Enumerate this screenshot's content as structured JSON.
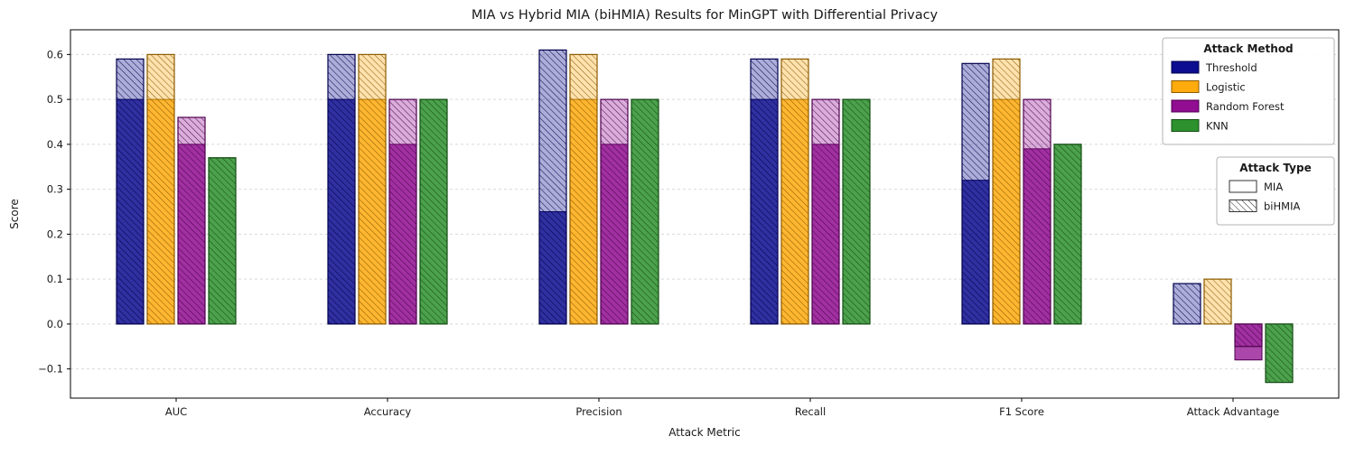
{
  "figure": {
    "background": "#ffffff"
  },
  "chart_data": {
    "type": "bar",
    "title": "MIA vs Hybrid MIA (biHMIA) Results for MinGPT with Differential Privacy",
    "xlabel": "Attack Metric",
    "ylabel": "Score",
    "categories": [
      "AUC",
      "Accuracy",
      "Precision",
      "Recall",
      "F1 Score",
      "Attack Advantage"
    ],
    "ylim": [
      -0.165,
      0.655
    ],
    "yticks": [
      -0.1,
      0.0,
      0.1,
      0.2,
      0.3,
      0.4,
      0.5,
      0.6
    ],
    "grid": "horizontal-dashed",
    "legend": {
      "method_title": "Attack Method",
      "type_title": "Attack Type",
      "type_entries": [
        "MIA",
        "biHMIA"
      ],
      "position": "upper-right-inside"
    },
    "series": [
      {
        "name": "Threshold",
        "color": "#00008b",
        "mia": [
          0.5,
          0.5,
          0.25,
          0.5,
          0.32,
          0.0
        ],
        "bihmia": [
          0.59,
          0.6,
          0.61,
          0.59,
          0.58,
          0.09
        ]
      },
      {
        "name": "Logistic",
        "color": "#ffa500",
        "mia": [
          0.5,
          0.5,
          0.5,
          0.5,
          0.5,
          0.0
        ],
        "bihmia": [
          0.6,
          0.6,
          0.6,
          0.59,
          0.59,
          0.1
        ]
      },
      {
        "name": "Random Forest",
        "color": "#8b008b",
        "mia": [
          0.4,
          0.4,
          0.4,
          0.4,
          0.39,
          -0.08
        ],
        "bihmia": [
          0.46,
          0.5,
          0.5,
          0.5,
          0.5,
          -0.05
        ]
      },
      {
        "name": "KNN",
        "color": "#228b22",
        "mia": [
          0.37,
          0.5,
          0.5,
          0.5,
          0.4,
          -0.13
        ],
        "bihmia": [
          0.37,
          0.5,
          0.5,
          0.5,
          0.4,
          -0.13
        ]
      }
    ]
  }
}
